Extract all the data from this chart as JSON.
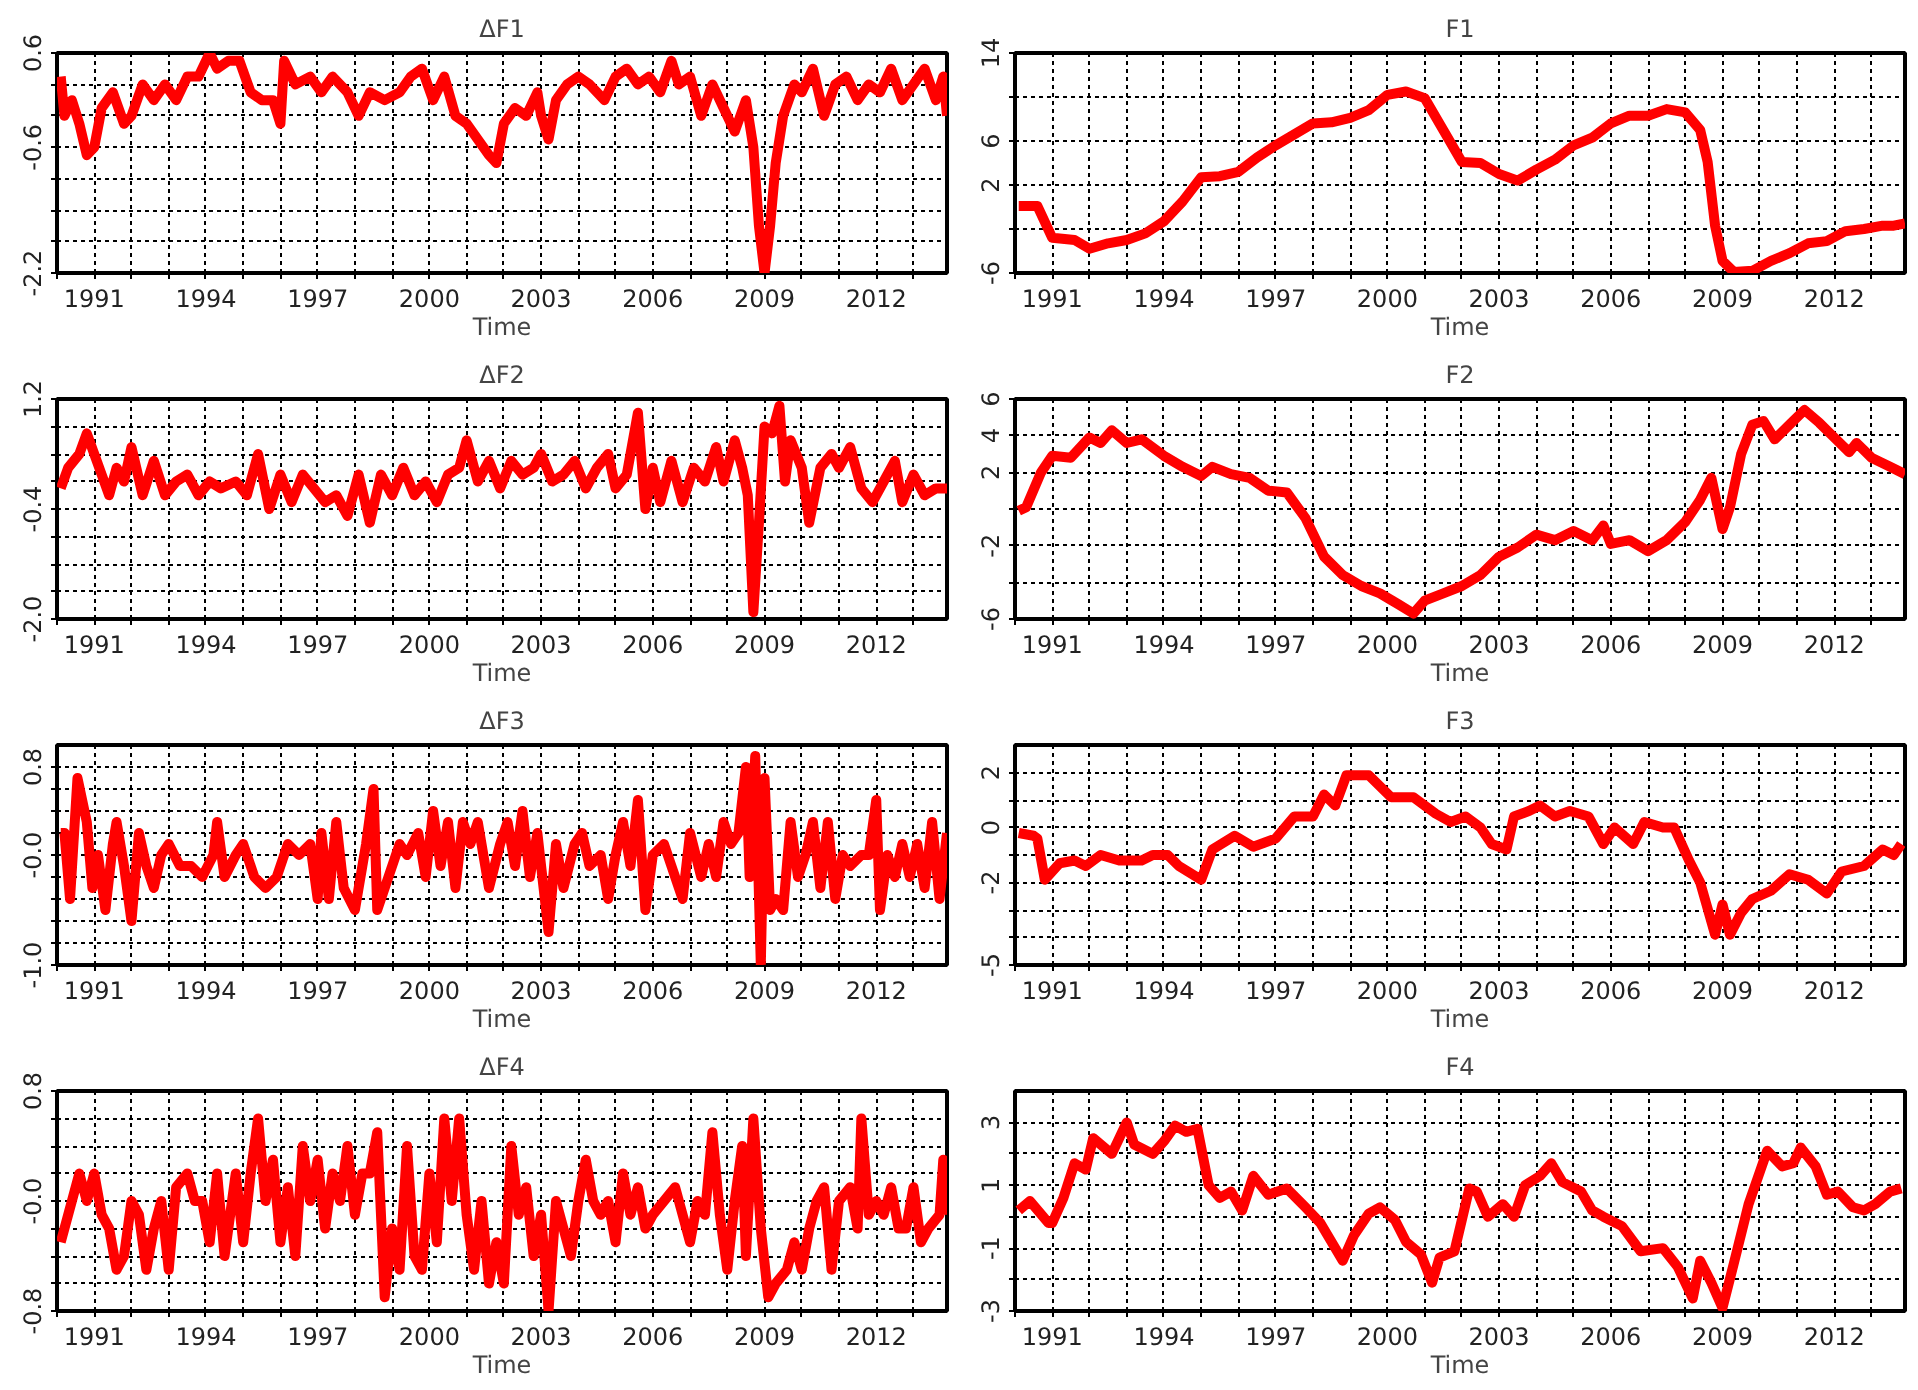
{
  "chart_data": [
    {
      "type": "line",
      "title": "ΔF1",
      "xlabel": "Time",
      "color": "#ff0000",
      "grid": true,
      "xlim": [
        1990.0,
        2013.9
      ],
      "ylim": [
        -2.2,
        0.6
      ],
      "xticks": [
        {
          "value": 1990,
          "label": null
        },
        1991,
        {
          "value": 1992,
          "label": null
        },
        {
          "value": 1993,
          "label": null
        },
        1994,
        {
          "value": 1995,
          "label": null
        },
        {
          "value": 1996,
          "label": null
        },
        1997,
        {
          "value": 1998,
          "label": null
        },
        {
          "value": 1999,
          "label": null
        },
        2000,
        {
          "value": 2001,
          "label": null
        },
        {
          "value": 2002,
          "label": null
        },
        2003,
        {
          "value": 2004,
          "label": null
        },
        {
          "value": 2005,
          "label": null
        },
        2006,
        {
          "value": 2007,
          "label": null
        },
        {
          "value": 2008,
          "label": null
        },
        2009,
        {
          "value": 2010,
          "label": null
        },
        {
          "value": 2011,
          "label": null
        },
        2012,
        {
          "value": 2013,
          "label": null
        }
      ],
      "yticks": [
        0.6,
        {
          "value": 0.2,
          "label": null
        },
        {
          "value": -0.2,
          "label": null
        },
        -0.6,
        {
          "value": -1.0,
          "label": null
        },
        {
          "value": -1.4,
          "label": null
        },
        {
          "value": -1.8,
          "label": null
        },
        -2.2
      ],
      "x": [
        1990.1,
        1990.2,
        1990.4,
        1990.6,
        1990.8,
        1991.0,
        1991.2,
        1991.5,
        1991.8,
        1992.0,
        1992.3,
        1992.6,
        1992.9,
        1993.2,
        1993.5,
        1993.8,
        1994.1,
        1994.3,
        1994.6,
        1994.9,
        1995.2,
        1995.5,
        1995.8,
        1996.0,
        1996.1,
        1996.4,
        1996.8,
        1997.1,
        1997.4,
        1997.8,
        1998.1,
        1998.4,
        1998.8,
        1999.2,
        1999.5,
        1999.8,
        2000.1,
        2000.4,
        2000.7,
        2001.0,
        2001.3,
        2001.6,
        2001.8,
        2002.0,
        2002.3,
        2002.6,
        2002.9,
        2003.0,
        2003.2,
        2003.4,
        2003.7,
        2004.0,
        2004.3,
        2004.7,
        2005.0,
        2005.3,
        2005.6,
        2005.9,
        2006.2,
        2006.5,
        2006.7,
        2007.0,
        2007.3,
        2007.6,
        2007.9,
        2008.2,
        2008.5,
        2008.7,
        2008.85,
        2009.0,
        2009.15,
        2009.3,
        2009.5,
        2009.8,
        2010.0,
        2010.3,
        2010.6,
        2010.9,
        2011.2,
        2011.5,
        2011.8,
        2012.1,
        2012.4,
        2012.7,
        2013.0,
        2013.3,
        2013.6,
        2013.8,
        2013.9
      ],
      "values": [
        0.3,
        -0.2,
        0.0,
        -0.3,
        -0.7,
        -0.6,
        -0.1,
        0.1,
        -0.3,
        -0.2,
        0.2,
        0.0,
        0.2,
        0.0,
        0.3,
        0.3,
        0.6,
        0.4,
        0.5,
        0.5,
        0.1,
        0.0,
        0.0,
        -0.3,
        0.5,
        0.2,
        0.3,
        0.1,
        0.3,
        0.1,
        -0.2,
        0.1,
        0.0,
        0.1,
        0.3,
        0.4,
        0.0,
        0.3,
        -0.2,
        -0.3,
        -0.5,
        -0.7,
        -0.8,
        -0.3,
        -0.1,
        -0.2,
        0.1,
        -0.2,
        -0.5,
        0.0,
        0.2,
        0.3,
        0.2,
        0.0,
        0.3,
        0.4,
        0.2,
        0.3,
        0.1,
        0.5,
        0.2,
        0.3,
        -0.2,
        0.2,
        -0.1,
        -0.4,
        0.0,
        -0.6,
        -1.6,
        -2.2,
        -1.6,
        -0.8,
        -0.2,
        0.2,
        0.1,
        0.4,
        -0.2,
        0.2,
        0.3,
        0.0,
        0.2,
        0.1,
        0.4,
        0.0,
        0.2,
        0.4,
        0.0,
        0.3,
        -0.2
      ]
    },
    {
      "type": "line",
      "title": "F1",
      "xlabel": "Time",
      "color": "#ff0000",
      "grid": true,
      "xlim": [
        1990.0,
        2013.9
      ],
      "ylim": [
        -6,
        14
      ],
      "xticks": [
        {
          "value": 1990,
          "label": null
        },
        1991,
        {
          "value": 1992,
          "label": null
        },
        {
          "value": 1993,
          "label": null
        },
        1994,
        {
          "value": 1995,
          "label": null
        },
        {
          "value": 1996,
          "label": null
        },
        1997,
        {
          "value": 1998,
          "label": null
        },
        {
          "value": 1999,
          "label": null
        },
        2000,
        {
          "value": 2001,
          "label": null
        },
        {
          "value": 2002,
          "label": null
        },
        2003,
        {
          "value": 2004,
          "label": null
        },
        {
          "value": 2005,
          "label": null
        },
        2006,
        {
          "value": 2007,
          "label": null
        },
        {
          "value": 2008,
          "label": null
        },
        2009,
        {
          "value": 2010,
          "label": null
        },
        {
          "value": 2011,
          "label": null
        },
        2012,
        {
          "value": 2013,
          "label": null
        }
      ],
      "yticks": [
        14,
        {
          "value": 10,
          "label": null
        },
        6,
        2,
        {
          "value": -2,
          "label": null
        },
        -6
      ],
      "x": [
        1990.1,
        1990.6,
        1991.0,
        1991.6,
        1992.0,
        1992.5,
        1993.0,
        1993.5,
        1994.0,
        1994.5,
        1995.0,
        1995.5,
        1996.0,
        1996.5,
        1997.0,
        1997.5,
        1998.0,
        1998.5,
        1999.0,
        1999.5,
        2000.0,
        2000.5,
        2001.0,
        2001.5,
        2002.0,
        2002.5,
        2003.0,
        2003.5,
        2004.0,
        2004.5,
        2005.0,
        2005.5,
        2006.0,
        2006.5,
        2007.0,
        2007.5,
        2008.0,
        2008.4,
        2008.6,
        2008.8,
        2009.0,
        2009.3,
        2009.8,
        2010.3,
        2010.8,
        2011.3,
        2011.8,
        2012.3,
        2012.8,
        2013.3,
        2013.6,
        2013.9
      ],
      "values": [
        0.1,
        0.1,
        -2.8,
        -3.0,
        -3.8,
        -3.3,
        -3.0,
        -2.4,
        -1.3,
        0.5,
        2.7,
        2.8,
        3.2,
        4.5,
        5.6,
        6.6,
        7.6,
        7.7,
        8.1,
        8.8,
        10.2,
        10.5,
        9.9,
        7.0,
        4.1,
        4.0,
        3.0,
        2.4,
        3.4,
        4.3,
        5.6,
        6.3,
        7.6,
        8.3,
        8.3,
        8.9,
        8.6,
        7.0,
        4.1,
        -1.7,
        -4.9,
        -5.9,
        -5.8,
        -4.9,
        -4.2,
        -3.3,
        -3.1,
        -2.2,
        -2.0,
        -1.7,
        -1.7,
        -1.5
      ]
    },
    {
      "type": "line",
      "title": "ΔF2",
      "xlabel": "Time",
      "color": "#ff0000",
      "grid": true,
      "xlim": [
        1990.0,
        2013.9
      ],
      "ylim": [
        -2.0,
        1.2
      ],
      "xticks": [
        {
          "value": 1990,
          "label": null
        },
        1991,
        {
          "value": 1992,
          "label": null
        },
        {
          "value": 1993,
          "label": null
        },
        1994,
        {
          "value": 1995,
          "label": null
        },
        {
          "value": 1996,
          "label": null
        },
        1997,
        {
          "value": 1998,
          "label": null
        },
        {
          "value": 1999,
          "label": null
        },
        2000,
        {
          "value": 2001,
          "label": null
        },
        {
          "value": 2002,
          "label": null
        },
        2003,
        {
          "value": 2004,
          "label": null
        },
        {
          "value": 2005,
          "label": null
        },
        2006,
        {
          "value": 2007,
          "label": null
        },
        {
          "value": 2008,
          "label": null
        },
        2009,
        {
          "value": 2010,
          "label": null
        },
        {
          "value": 2011,
          "label": null
        },
        2012,
        {
          "value": 2013,
          "label": null
        }
      ],
      "yticks": [
        1.2,
        {
          "value": 0.8,
          "label": null
        },
        {
          "value": 0.4,
          "label": null
        },
        {
          "value": 0.0,
          "label": null
        },
        -0.4,
        {
          "value": -0.8,
          "label": null
        },
        {
          "value": -1.2,
          "label": null
        },
        {
          "value": -1.6,
          "label": null
        },
        {
          "value": -2.0,
          "label": "-2.0"
        }
      ],
      "x": [
        1990.1,
        1990.3,
        1990.6,
        1990.8,
        1991.0,
        1991.2,
        1991.4,
        1991.6,
        1991.8,
        1992.0,
        1992.3,
        1992.6,
        1992.9,
        1993.2,
        1993.5,
        1993.8,
        1994.1,
        1994.4,
        1994.8,
        1995.1,
        1995.4,
        1995.7,
        1996.0,
        1996.3,
        1996.6,
        1996.9,
        1997.2,
        1997.5,
        1997.8,
        1998.1,
        1998.4,
        1998.7,
        1999.0,
        1999.3,
        1999.6,
        1999.9,
        2000.2,
        2000.5,
        2000.8,
        2001.0,
        2001.3,
        2001.6,
        2001.9,
        2002.2,
        2002.5,
        2002.8,
        2003.0,
        2003.3,
        2003.6,
        2003.9,
        2004.2,
        2004.5,
        2004.8,
        2005.0,
        2005.3,
        2005.6,
        2005.8,
        2006.0,
        2006.2,
        2006.5,
        2006.8,
        2007.1,
        2007.4,
        2007.7,
        2007.9,
        2008.2,
        2008.4,
        2008.55,
        2008.7,
        2008.85,
        2009.0,
        2009.2,
        2009.4,
        2009.55,
        2009.7,
        2010.0,
        2010.2,
        2010.5,
        2010.8,
        2011.0,
        2011.3,
        2011.6,
        2011.9,
        2012.2,
        2012.5,
        2012.7,
        2013.0,
        2013.3,
        2013.6,
        2013.9
      ],
      "values": [
        -0.1,
        0.2,
        0.4,
        0.7,
        0.4,
        0.1,
        -0.2,
        0.2,
        0.0,
        0.5,
        -0.2,
        0.3,
        -0.2,
        0.0,
        0.1,
        -0.2,
        0.0,
        -0.1,
        0.0,
        -0.2,
        0.4,
        -0.4,
        0.1,
        -0.3,
        0.1,
        -0.1,
        -0.3,
        -0.2,
        -0.5,
        0.1,
        -0.6,
        0.1,
        -0.2,
        0.2,
        -0.2,
        0.0,
        -0.3,
        0.1,
        0.2,
        0.6,
        0.0,
        0.3,
        -0.1,
        0.3,
        0.1,
        0.2,
        0.4,
        0.0,
        0.1,
        0.3,
        -0.1,
        0.2,
        0.4,
        -0.1,
        0.1,
        1.0,
        -0.4,
        0.2,
        -0.3,
        0.3,
        -0.3,
        0.2,
        0.0,
        0.5,
        0.0,
        0.6,
        0.2,
        -0.2,
        -1.9,
        -0.6,
        0.8,
        0.7,
        1.1,
        0.0,
        0.6,
        0.2,
        -0.6,
        0.2,
        0.4,
        0.2,
        0.5,
        -0.1,
        -0.3,
        0.0,
        0.3,
        -0.3,
        0.1,
        -0.2,
        -0.1,
        -0.1
      ]
    },
    {
      "type": "line",
      "title": "F2",
      "xlabel": "Time",
      "color": "#ff0000",
      "grid": true,
      "xlim": [
        1990.0,
        2013.9
      ],
      "ylim": [
        -6,
        6
      ],
      "xticks": [
        {
          "value": 1990,
          "label": null
        },
        1991,
        {
          "value": 1992,
          "label": null
        },
        {
          "value": 1993,
          "label": null
        },
        1994,
        {
          "value": 1995,
          "label": null
        },
        {
          "value": 1996,
          "label": null
        },
        1997,
        {
          "value": 1998,
          "label": null
        },
        {
          "value": 1999,
          "label": null
        },
        2000,
        {
          "value": 2001,
          "label": null
        },
        {
          "value": 2002,
          "label": null
        },
        2003,
        {
          "value": 2004,
          "label": null
        },
        {
          "value": 2005,
          "label": null
        },
        2006,
        {
          "value": 2007,
          "label": null
        },
        {
          "value": 2008,
          "label": null
        },
        2009,
        {
          "value": 2010,
          "label": null
        },
        {
          "value": 2011,
          "label": null
        },
        2012,
        {
          "value": 2013,
          "label": null
        }
      ],
      "yticks": [
        6,
        4,
        2,
        {
          "value": 0,
          "label": null
        },
        -2,
        {
          "value": -4,
          "label": null
        },
        -6
      ],
      "x": [
        1990.1,
        1990.3,
        1990.7,
        1991.0,
        1991.5,
        1992.0,
        1992.3,
        1992.6,
        1993.0,
        1993.4,
        1994.0,
        1994.5,
        1995.0,
        1995.3,
        1995.8,
        1996.3,
        1996.8,
        1997.3,
        1997.8,
        1998.3,
        1998.8,
        1999.3,
        1999.8,
        2000.3,
        2000.7,
        2001.0,
        2001.5,
        2002.0,
        2002.5,
        2003.0,
        2003.5,
        2004.0,
        2004.5,
        2005.0,
        2005.5,
        2005.8,
        2006.0,
        2006.5,
        2007.0,
        2007.5,
        2008.0,
        2008.4,
        2008.7,
        2009.0,
        2009.2,
        2009.5,
        2009.8,
        2010.1,
        2010.4,
        2010.8,
        2011.2,
        2011.6,
        2012.0,
        2012.4,
        2012.6,
        2013.0,
        2013.5,
        2013.9
      ],
      "values": [
        -0.1,
        0.1,
        2.0,
        2.9,
        2.8,
        3.9,
        3.6,
        4.3,
        3.6,
        3.8,
        2.9,
        2.3,
        1.8,
        2.3,
        1.9,
        1.7,
        1.0,
        0.9,
        -0.5,
        -2.6,
        -3.6,
        -4.2,
        -4.6,
        -5.2,
        -5.7,
        -5.0,
        -4.6,
        -4.2,
        -3.6,
        -2.6,
        -2.1,
        -1.4,
        -1.7,
        -1.2,
        -1.7,
        -0.9,
        -1.9,
        -1.7,
        -2.3,
        -1.7,
        -0.7,
        0.5,
        1.7,
        -1.1,
        0.1,
        3.0,
        4.6,
        4.8,
        3.8,
        4.6,
        5.4,
        4.7,
        3.9,
        3.1,
        3.6,
        2.8,
        2.3,
        1.9
      ]
    },
    {
      "type": "line",
      "title": "ΔF3",
      "xlabel": "Time",
      "color": "#ff0000",
      "grid": true,
      "xlim": [
        1990.0,
        2013.9
      ],
      "ylim": [
        -1.0,
        1.0
      ],
      "xticks": [
        {
          "value": 1990,
          "label": null
        },
        1991,
        {
          "value": 1992,
          "label": null
        },
        {
          "value": 1993,
          "label": null
        },
        1994,
        {
          "value": 1995,
          "label": null
        },
        {
          "value": 1996,
          "label": null
        },
        1997,
        {
          "value": 1998,
          "label": null
        },
        {
          "value": 1999,
          "label": null
        },
        2000,
        {
          "value": 2001,
          "label": null
        },
        {
          "value": 2002,
          "label": null
        },
        2003,
        {
          "value": 2004,
          "label": null
        },
        {
          "value": 2005,
          "label": null
        },
        2006,
        {
          "value": 2007,
          "label": null
        },
        {
          "value": 2008,
          "label": null
        },
        2009,
        {
          "value": 2010,
          "label": null
        },
        {
          "value": 2011,
          "label": null
        },
        2012,
        {
          "value": 2013,
          "label": null
        }
      ],
      "yticks": [
        0.8,
        {
          "value": 0.6,
          "label": null
        },
        {
          "value": 0.4,
          "label": null
        },
        {
          "value": 0.2,
          "label": null
        },
        {
          "value": 0,
          "label": "-0.0"
        },
        {
          "value": -0.2,
          "label": null
        },
        {
          "value": -0.4,
          "label": null
        },
        {
          "value": -0.6,
          "label": null
        },
        {
          "value": -0.8,
          "label": null
        },
        {
          "value": -1.0,
          "label": "-1.0"
        }
      ],
      "x": [
        1990.1,
        1990.2,
        1990.35,
        1990.55,
        1990.8,
        1990.95,
        1991.1,
        1991.3,
        1991.5,
        1991.6,
        1991.8,
        1992.0,
        1992.2,
        1992.4,
        1992.6,
        1992.8,
        1993.0,
        1993.3,
        1993.6,
        1993.9,
        1994.2,
        1994.3,
        1994.5,
        1994.8,
        1995.0,
        1995.3,
        1995.6,
        1995.9,
        1996.2,
        1996.5,
        1996.8,
        1997.0,
        1997.1,
        1997.3,
        1997.5,
        1997.7,
        1998.0,
        1998.3,
        1998.5,
        1998.6,
        1998.9,
        1999.2,
        1999.4,
        1999.7,
        1999.9,
        2000.1,
        2000.3,
        2000.5,
        2000.7,
        2000.9,
        2001.1,
        2001.3,
        2001.6,
        2001.9,
        2002.1,
        2002.3,
        2002.5,
        2002.7,
        2002.9,
        2003.2,
        2003.4,
        2003.6,
        2003.9,
        2004.1,
        2004.3,
        2004.6,
        2004.8,
        2005.0,
        2005.2,
        2005.4,
        2005.6,
        2005.8,
        2006.0,
        2006.3,
        2006.5,
        2006.8,
        2007.0,
        2007.3,
        2007.5,
        2007.7,
        2007.9,
        2008.1,
        2008.3,
        2008.5,
        2008.6,
        2008.75,
        2008.9,
        2009.0,
        2009.15,
        2009.3,
        2009.5,
        2009.7,
        2009.9,
        2010.1,
        2010.3,
        2010.5,
        2010.7,
        2010.9,
        2011.1,
        2011.3,
        2011.6,
        2011.8,
        2012.0,
        2012.1,
        2012.3,
        2012.5,
        2012.7,
        2012.9,
        2013.1,
        2013.3,
        2013.5,
        2013.7,
        2013.9
      ],
      "values": [
        0.2,
        0.2,
        -0.4,
        0.7,
        0.3,
        -0.3,
        0.0,
        -0.5,
        0.1,
        0.3,
        -0.1,
        -0.6,
        0.2,
        -0.1,
        -0.3,
        0.0,
        0.1,
        -0.1,
        -0.1,
        -0.2,
        0.0,
        0.3,
        -0.2,
        0.0,
        0.1,
        -0.2,
        -0.3,
        -0.2,
        0.1,
        0.0,
        0.1,
        -0.4,
        0.2,
        -0.4,
        0.3,
        -0.3,
        -0.5,
        0.1,
        0.6,
        -0.5,
        -0.2,
        0.1,
        0.0,
        0.2,
        -0.2,
        0.4,
        -0.1,
        0.3,
        -0.3,
        0.3,
        0.1,
        0.3,
        -0.3,
        0.1,
        0.3,
        -0.1,
        0.4,
        -0.2,
        0.2,
        -0.7,
        0.1,
        -0.3,
        0.1,
        0.2,
        -0.1,
        0.0,
        -0.4,
        0.0,
        0.3,
        -0.1,
        0.5,
        -0.5,
        0.0,
        0.1,
        -0.1,
        -0.4,
        0.2,
        -0.2,
        0.1,
        -0.2,
        0.3,
        0.1,
        0.2,
        0.8,
        -0.2,
        0.9,
        -1.0,
        0.7,
        -0.5,
        -0.4,
        -0.5,
        0.3,
        -0.2,
        0.0,
        0.3,
        -0.3,
        0.3,
        -0.4,
        0.0,
        -0.1,
        0.0,
        0.0,
        0.5,
        -0.5,
        0.0,
        -0.2,
        0.1,
        -0.2,
        0.1,
        -0.3,
        0.3,
        -0.4,
        0.2
      ]
    },
    {
      "type": "line",
      "title": "F3",
      "xlabel": "Time",
      "color": "#ff0000",
      "grid": true,
      "xlim": [
        1990.0,
        2013.9
      ],
      "ylim": [
        -5,
        3
      ],
      "xticks": [
        {
          "value": 1990,
          "label": null
        },
        1991,
        {
          "value": 1992,
          "label": null
        },
        {
          "value": 1993,
          "label": null
        },
        1994,
        {
          "value": 1995,
          "label": null
        },
        {
          "value": 1996,
          "label": null
        },
        1997,
        {
          "value": 1998,
          "label": null
        },
        {
          "value": 1999,
          "label": null
        },
        2000,
        {
          "value": 2001,
          "label": null
        },
        {
          "value": 2002,
          "label": null
        },
        2003,
        {
          "value": 2004,
          "label": null
        },
        {
          "value": 2005,
          "label": null
        },
        2006,
        {
          "value": 2007,
          "label": null
        },
        {
          "value": 2008,
          "label": null
        },
        2009,
        {
          "value": 2010,
          "label": null
        },
        {
          "value": 2011,
          "label": null
        },
        2012,
        {
          "value": 2013,
          "label": null
        }
      ],
      "yticks": [
        2,
        {
          "value": 1,
          "label": null
        },
        0,
        {
          "value": -1,
          "label": null
        },
        -2,
        {
          "value": -3,
          "label": null
        },
        {
          "value": -4,
          "label": null
        },
        -5
      ],
      "x": [
        1990.1,
        1990.5,
        1990.6,
        1990.8,
        1991.2,
        1991.6,
        1991.9,
        1992.3,
        1992.8,
        1993.4,
        1993.7,
        1994.1,
        1994.4,
        1995.0,
        1995.3,
        1995.9,
        1996.4,
        1997.0,
        1997.5,
        1998.0,
        1998.3,
        1998.6,
        1998.9,
        1999.5,
        1999.8,
        2000.1,
        2000.7,
        2001.3,
        2001.7,
        2002.1,
        2002.5,
        2002.8,
        2003.2,
        2003.4,
        2003.8,
        2004.1,
        2004.5,
        2004.9,
        2005.4,
        2005.8,
        2006.1,
        2006.6,
        2006.9,
        2007.4,
        2007.7,
        2008.1,
        2008.4,
        2008.8,
        2009.0,
        2009.2,
        2009.5,
        2009.8,
        2010.3,
        2010.8,
        2011.3,
        2011.8,
        2012.2,
        2012.8,
        2013.3,
        2013.6,
        2013.8
      ],
      "values": [
        -0.2,
        -0.3,
        -0.4,
        -1.9,
        -1.3,
        -1.2,
        -1.4,
        -1.0,
        -1.2,
        -1.2,
        -1.0,
        -1.0,
        -1.4,
        -1.9,
        -0.8,
        -0.3,
        -0.7,
        -0.4,
        0.4,
        0.4,
        1.2,
        0.8,
        1.9,
        1.9,
        1.5,
        1.1,
        1.1,
        0.5,
        0.2,
        0.4,
        0.0,
        -0.6,
        -0.8,
        0.4,
        0.6,
        0.8,
        0.4,
        0.6,
        0.4,
        -0.6,
        0.0,
        -0.6,
        0.2,
        0.0,
        0.0,
        -1.2,
        -2.0,
        -3.9,
        -2.8,
        -3.9,
        -3.1,
        -2.6,
        -2.3,
        -1.7,
        -1.9,
        -2.4,
        -1.6,
        -1.4,
        -0.8,
        -1.0,
        -0.6
      ]
    },
    {
      "type": "line",
      "title": "ΔF4",
      "xlabel": "Time",
      "color": "#ff0000",
      "grid": true,
      "xlim": [
        1990.0,
        2013.9
      ],
      "ylim": [
        -0.8,
        0.8
      ],
      "xticks": [
        {
          "value": 1990,
          "label": null
        },
        1991,
        {
          "value": 1992,
          "label": null
        },
        {
          "value": 1993,
          "label": null
        },
        1994,
        {
          "value": 1995,
          "label": null
        },
        {
          "value": 1996,
          "label": null
        },
        1997,
        {
          "value": 1998,
          "label": null
        },
        {
          "value": 1999,
          "label": null
        },
        2000,
        {
          "value": 2001,
          "label": null
        },
        {
          "value": 2002,
          "label": null
        },
        2003,
        {
          "value": 2004,
          "label": null
        },
        {
          "value": 2005,
          "label": null
        },
        2006,
        {
          "value": 2007,
          "label": null
        },
        {
          "value": 2008,
          "label": null
        },
        2009,
        {
          "value": 2010,
          "label": null
        },
        {
          "value": 2011,
          "label": null
        },
        2012,
        {
          "value": 2013,
          "label": null
        }
      ],
      "yticks": [
        0.8,
        {
          "value": 0.6,
          "label": null
        },
        {
          "value": 0.4,
          "label": null
        },
        {
          "value": 0.2,
          "label": null
        },
        {
          "value": 0,
          "label": "-0.0"
        },
        {
          "value": -0.2,
          "label": null
        },
        {
          "value": -0.4,
          "label": null
        },
        {
          "value": -0.6,
          "label": null
        },
        -0.8
      ],
      "x": [
        1990.1,
        1990.2,
        1990.4,
        1990.6,
        1990.8,
        1991.0,
        1991.2,
        1991.4,
        1991.6,
        1991.8,
        1992.0,
        1992.2,
        1992.4,
        1992.6,
        1992.8,
        1993.0,
        1993.2,
        1993.5,
        1993.7,
        1993.9,
        1994.1,
        1994.3,
        1994.5,
        1994.8,
        1995.0,
        1995.2,
        1995.4,
        1995.6,
        1995.8,
        1996.0,
        1996.2,
        1996.4,
        1996.6,
        1996.8,
        1997.0,
        1997.2,
        1997.4,
        1997.6,
        1997.8,
        1998.0,
        1998.2,
        1998.4,
        1998.6,
        1998.8,
        1999.0,
        1999.2,
        1999.4,
        1999.6,
        1999.8,
        2000.0,
        2000.2,
        2000.4,
        2000.6,
        2000.8,
        2001.0,
        2001.2,
        2001.4,
        2001.6,
        2001.8,
        2002.0,
        2002.2,
        2002.4,
        2002.6,
        2002.8,
        2003.0,
        2003.2,
        2003.4,
        2003.6,
        2003.8,
        2004.0,
        2004.2,
        2004.4,
        2004.6,
        2004.8,
        2005.0,
        2005.2,
        2005.4,
        2005.6,
        2005.8,
        2006.0,
        2006.3,
        2006.6,
        2006.8,
        2007.0,
        2007.2,
        2007.4,
        2007.6,
        2007.8,
        2008.0,
        2008.2,
        2008.4,
        2008.5,
        2008.7,
        2008.9,
        2009.1,
        2009.3,
        2009.6,
        2009.8,
        2010.0,
        2010.2,
        2010.4,
        2010.6,
        2010.8,
        2011.0,
        2011.3,
        2011.5,
        2011.6,
        2011.8,
        2012.0,
        2012.2,
        2012.4,
        2012.6,
        2012.8,
        2013.0,
        2013.2,
        2013.4,
        2013.7,
        2013.8,
        2013.9
      ],
      "values": [
        -0.3,
        -0.2,
        0.0,
        0.2,
        0.0,
        0.2,
        -0.1,
        -0.2,
        -0.5,
        -0.4,
        0.0,
        -0.1,
        -0.5,
        -0.2,
        0.0,
        -0.5,
        0.1,
        0.2,
        0.0,
        0.0,
        -0.3,
        0.2,
        -0.4,
        0.2,
        -0.3,
        0.2,
        0.6,
        0.0,
        0.3,
        -0.3,
        0.1,
        -0.4,
        0.4,
        0.0,
        0.3,
        -0.2,
        0.2,
        0.0,
        0.4,
        -0.1,
        0.2,
        0.2,
        0.5,
        -0.7,
        -0.2,
        -0.5,
        0.4,
        -0.4,
        -0.5,
        0.2,
        -0.3,
        0.6,
        0.0,
        0.6,
        -0.1,
        -0.5,
        0.0,
        -0.6,
        -0.3,
        -0.6,
        0.4,
        -0.1,
        0.1,
        -0.4,
        -0.1,
        -0.8,
        0.0,
        -0.2,
        -0.4,
        0.0,
        0.3,
        0.0,
        -0.1,
        0.0,
        -0.3,
        0.2,
        -0.1,
        0.1,
        -0.2,
        -0.1,
        0.0,
        0.1,
        -0.1,
        -0.3,
        0.0,
        -0.1,
        0.5,
        -0.1,
        -0.5,
        0.0,
        0.4,
        -0.4,
        0.6,
        -0.2,
        -0.7,
        -0.6,
        -0.5,
        -0.3,
        -0.5,
        -0.2,
        0.0,
        0.1,
        -0.5,
        0.0,
        0.1,
        -0.2,
        0.6,
        -0.1,
        0.0,
        -0.1,
        0.1,
        -0.2,
        -0.2,
        0.1,
        -0.3,
        -0.2,
        -0.1,
        0.3,
        -0.1
      ]
    },
    {
      "type": "line",
      "title": "F4",
      "xlabel": "Time",
      "color": "#ff0000",
      "grid": true,
      "xlim": [
        1990.0,
        2013.9
      ],
      "ylim": [
        -3,
        4
      ],
      "xticks": [
        {
          "value": 1990,
          "label": null
        },
        1991,
        {
          "value": 1992,
          "label": null
        },
        {
          "value": 1993,
          "label": null
        },
        1994,
        {
          "value": 1995,
          "label": null
        },
        {
          "value": 1996,
          "label": null
        },
        1997,
        {
          "value": 1998,
          "label": null
        },
        {
          "value": 1999,
          "label": null
        },
        2000,
        {
          "value": 2001,
          "label": null
        },
        {
          "value": 2002,
          "label": null
        },
        2003,
        {
          "value": 2004,
          "label": null
        },
        {
          "value": 2005,
          "label": null
        },
        2006,
        {
          "value": 2007,
          "label": null
        },
        {
          "value": 2008,
          "label": null
        },
        2009,
        {
          "value": 2010,
          "label": null
        },
        {
          "value": 2011,
          "label": null
        },
        2012,
        {
          "value": 2013,
          "label": null
        }
      ],
      "yticks": [
        3,
        {
          "value": 2,
          "label": null
        },
        1,
        {
          "value": 0,
          "label": null
        },
        -1,
        {
          "value": -2,
          "label": null
        },
        -3
      ],
      "x": [
        1990.1,
        1990.4,
        1990.9,
        1991.0,
        1991.3,
        1991.6,
        1991.9,
        1992.1,
        1992.6,
        1993.0,
        1993.2,
        1993.7,
        1994.0,
        1994.3,
        1994.6,
        1994.9,
        1995.2,
        1995.5,
        1995.8,
        1996.1,
        1996.4,
        1996.8,
        1997.3,
        1997.8,
        1998.2,
        1998.8,
        1999.1,
        1999.5,
        1999.8,
        2000.2,
        2000.5,
        2000.9,
        2001.2,
        2001.4,
        2001.8,
        2002.2,
        2002.4,
        2002.7,
        2003.1,
        2003.4,
        2003.7,
        2004.1,
        2004.4,
        2004.7,
        2005.2,
        2005.5,
        2005.8,
        2006.3,
        2006.8,
        2007.4,
        2007.8,
        2008.2,
        2008.4,
        2008.7,
        2009.0,
        2009.3,
        2009.7,
        2010.2,
        2010.6,
        2010.9,
        2011.1,
        2011.5,
        2011.8,
        2012.1,
        2012.5,
        2012.8,
        2013.1,
        2013.5,
        2013.8
      ],
      "values": [
        0.2,
        0.5,
        -0.2,
        -0.2,
        0.6,
        1.7,
        1.5,
        2.5,
        2.0,
        3.0,
        2.3,
        2.0,
        2.4,
        2.9,
        2.7,
        2.8,
        1.0,
        0.6,
        0.8,
        0.2,
        1.3,
        0.7,
        0.9,
        0.3,
        -0.2,
        -1.4,
        -0.6,
        0.1,
        0.3,
        -0.1,
        -0.8,
        -1.2,
        -2.1,
        -1.3,
        -1.1,
        0.9,
        0.8,
        0.0,
        0.4,
        0.0,
        1.0,
        1.3,
        1.7,
        1.1,
        0.8,
        0.2,
        0.0,
        -0.3,
        -1.1,
        -1.0,
        -1.6,
        -2.6,
        -1.4,
        -2.1,
        -2.9,
        -1.5,
        0.4,
        2.1,
        1.6,
        1.7,
        2.2,
        1.6,
        0.7,
        0.8,
        0.3,
        0.2,
        0.4,
        0.8,
        0.9
      ]
    }
  ]
}
